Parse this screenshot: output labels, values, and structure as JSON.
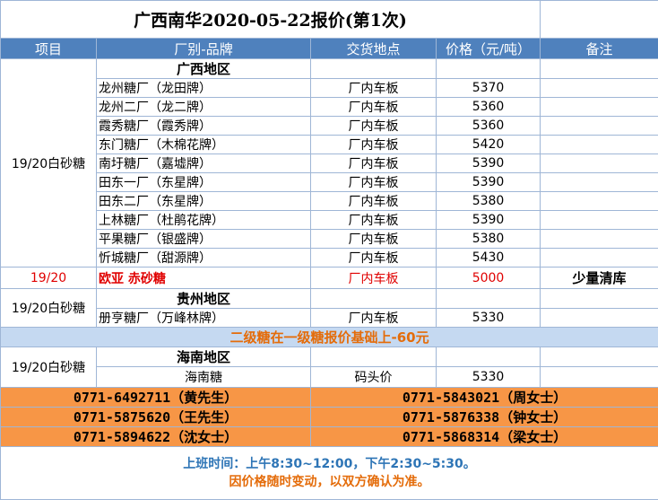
{
  "title": "广西南华2020-05-22报价(第1次)",
  "columns": [
    "项目",
    "厂别-品牌",
    "交货地点",
    "价格（元/吨）",
    "备注"
  ],
  "groups": [
    {
      "item": "19/20白砂糖",
      "region": "广西地区",
      "rows": [
        [
          "龙州糖厂（龙田牌）",
          "厂内车板",
          5370
        ],
        [
          "龙州二厂（龙二牌）",
          "厂内车板",
          5360
        ],
        [
          "霞秀糖厂（霞秀牌）",
          "厂内车板",
          5360
        ],
        [
          "东门糖厂（木棉花牌）",
          "厂内车板",
          5420
        ],
        [
          "南圩糖厂（嘉墟牌）",
          "厂内车板",
          5390
        ],
        [
          "田东一厂（东星牌）",
          "厂内车板",
          5390
        ],
        [
          "田东二厂（东星牌）",
          "厂内车板",
          5380
        ],
        [
          "上林糖厂（杜鹃花牌）",
          "厂内车板",
          5390
        ],
        [
          "平果糖厂（银盛牌）",
          "厂内车板",
          5380
        ],
        [
          "忻城糖厂（甜源牌）",
          "厂内车板",
          5430
        ]
      ]
    },
    {
      "item": "19/20",
      "rows": [
        [
          "欧亚 赤砂糖",
          "厂内车板",
          5000,
          "少量清库"
        ]
      ]
    },
    {
      "item": "19/20白砂糖",
      "region": "贵州地区",
      "rows": [
        [
          "册亨糖厂（万峰林牌）",
          "厂内车板",
          5330
        ]
      ]
    },
    {
      "item": "19/20白砂糖",
      "region": "海南地区",
      "rows": [
        [
          "海南糖",
          "码头价",
          5330
        ]
      ]
    }
  ],
  "note": "二级糖在一级糖报价基础上-60元",
  "contacts": [
    [
      "0771-6492711（黄先生）",
      "0771-5843021（周女士）"
    ],
    [
      "0771-5875620（王先生）",
      "0771-5876338（钟女士）"
    ],
    [
      "0771-5894622（沈女士）",
      "0771-5868314（梁女士）"
    ]
  ],
  "footer": [
    "上班时间：上午8:30~12:00，下午2:30~5:30。",
    "因价格随时变动，以双方确认为准。"
  ]
}
